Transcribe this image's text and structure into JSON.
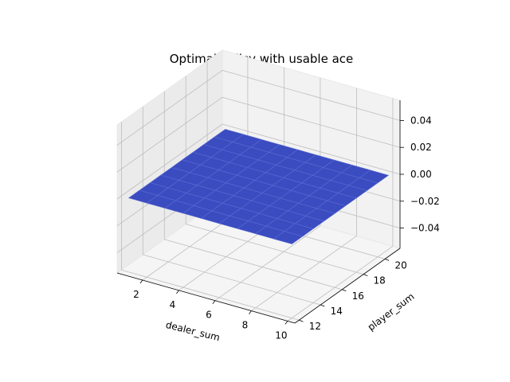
{
  "chart_data": {
    "type": "surface3d",
    "title": "Optimal policy with usable ace",
    "xlabel": "dealer_sum",
    "ylabel": "player_sum",
    "zlabel": "",
    "x_values": [
      1,
      2,
      3,
      4,
      5,
      6,
      7,
      8,
      9,
      10
    ],
    "y_values": [
      12,
      13,
      14,
      15,
      16,
      17,
      18,
      19,
      20,
      21
    ],
    "z_constant": 0,
    "x_ticks": [
      2,
      4,
      6,
      8,
      10
    ],
    "y_ticks": [
      12,
      14,
      16,
      18,
      20
    ],
    "z_ticks": [
      -0.04,
      -0.02,
      0.0,
      0.02,
      0.04
    ],
    "z_tick_labels": [
      "−0.04",
      "−0.02",
      "0.00",
      "0.02",
      "0.04"
    ],
    "xlim": [
      0.6,
      10.4
    ],
    "ylim": [
      11.6,
      21.4
    ],
    "zlim": [
      -0.055,
      0.055
    ],
    "surface_color": "#3b4cc0",
    "grid": true
  }
}
